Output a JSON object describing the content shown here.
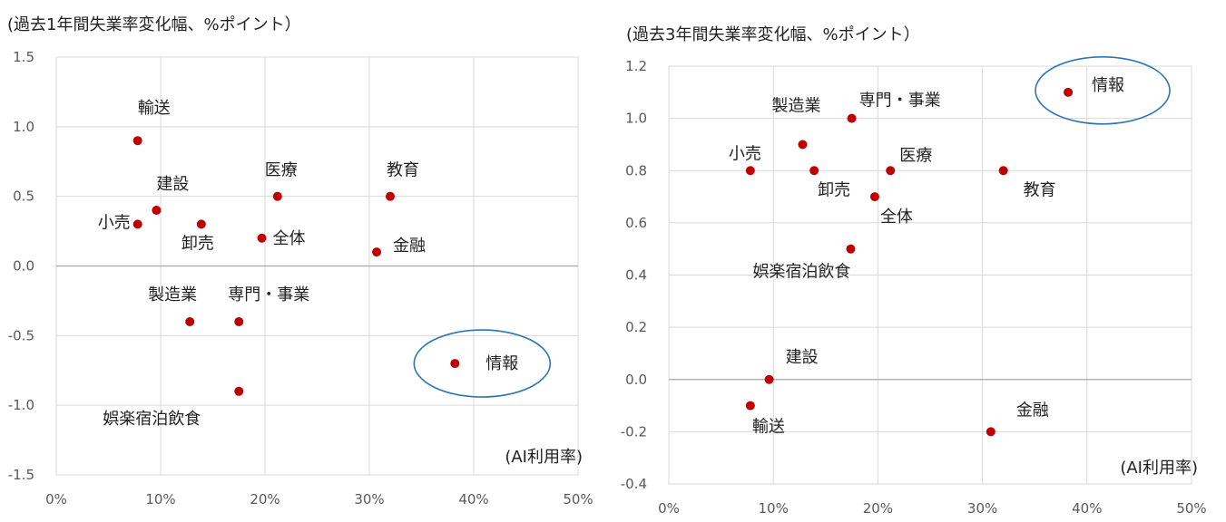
{
  "chart_data": [
    {
      "type": "scatter",
      "title": "(過去1年間失業率変化幅、%ポイント）",
      "xlabel": "(AI利用率)",
      "ylabel": "",
      "xlim": [
        0,
        50
      ],
      "ylim": [
        -1.5,
        1.5
      ],
      "x_ticks": [
        "0%",
        "10%",
        "20%",
        "30%",
        "40%",
        "50%"
      ],
      "y_ticks": [
        "1.5",
        "1.0",
        "0.5",
        "0.0",
        "-0.5",
        "-1.0",
        "-1.5"
      ],
      "highlight": "情報",
      "point_color": "#c00000",
      "highlight_color": "#2e75b6",
      "points": [
        {
          "label": "輸送",
          "x": 7.8,
          "y": 0.9
        },
        {
          "label": "小売",
          "x": 7.8,
          "y": 0.3
        },
        {
          "label": "建設",
          "x": 9.6,
          "y": 0.4
        },
        {
          "label": "卸売",
          "x": 13.9,
          "y": 0.3
        },
        {
          "label": "医療",
          "x": 21.2,
          "y": 0.5
        },
        {
          "label": "全体",
          "x": 19.7,
          "y": 0.2
        },
        {
          "label": "教育",
          "x": 32.0,
          "y": 0.5
        },
        {
          "label": "金融",
          "x": 30.7,
          "y": 0.1
        },
        {
          "label": "製造業",
          "x": 12.8,
          "y": -0.4
        },
        {
          "label": "専門・事業",
          "x": 17.5,
          "y": -0.4
        },
        {
          "label": "情報",
          "x": 38.2,
          "y": -0.7
        },
        {
          "label": "娯楽宿泊飲食",
          "x": 17.5,
          "y": -0.9
        }
      ]
    },
    {
      "type": "scatter",
      "title": "(過去3年間失業率変化幅、%ポイント）",
      "xlabel": "(AI利用率)",
      "ylabel": "",
      "xlim": [
        0,
        50
      ],
      "ylim": [
        -0.4,
        1.2
      ],
      "x_ticks": [
        "0%",
        "10%",
        "20%",
        "30%",
        "40%",
        "50%"
      ],
      "y_ticks": [
        "1.2",
        "1.0",
        "0.8",
        "0.6",
        "0.4",
        "0.2",
        "0.0",
        "-0.2",
        "-0.4"
      ],
      "highlight": "情報",
      "point_color": "#c00000",
      "highlight_color": "#2e75b6",
      "points": [
        {
          "label": "情報",
          "x": 38.2,
          "y": 1.1
        },
        {
          "label": "専門・事業",
          "x": 17.5,
          "y": 1.0
        },
        {
          "label": "製造業",
          "x": 12.8,
          "y": 0.9
        },
        {
          "label": "小売",
          "x": 7.8,
          "y": 0.8
        },
        {
          "label": "卸売",
          "x": 13.9,
          "y": 0.8
        },
        {
          "label": "医療",
          "x": 21.2,
          "y": 0.8
        },
        {
          "label": "教育",
          "x": 32.0,
          "y": 0.8
        },
        {
          "label": "全体",
          "x": 19.7,
          "y": 0.7
        },
        {
          "label": "娯楽宿泊飲食",
          "x": 17.4,
          "y": 0.5
        },
        {
          "label": "建設",
          "x": 9.6,
          "y": 0.0
        },
        {
          "label": "輸送",
          "x": 7.8,
          "y": -0.1
        },
        {
          "label": "金融",
          "x": 30.8,
          "y": -0.2
        }
      ]
    }
  ]
}
